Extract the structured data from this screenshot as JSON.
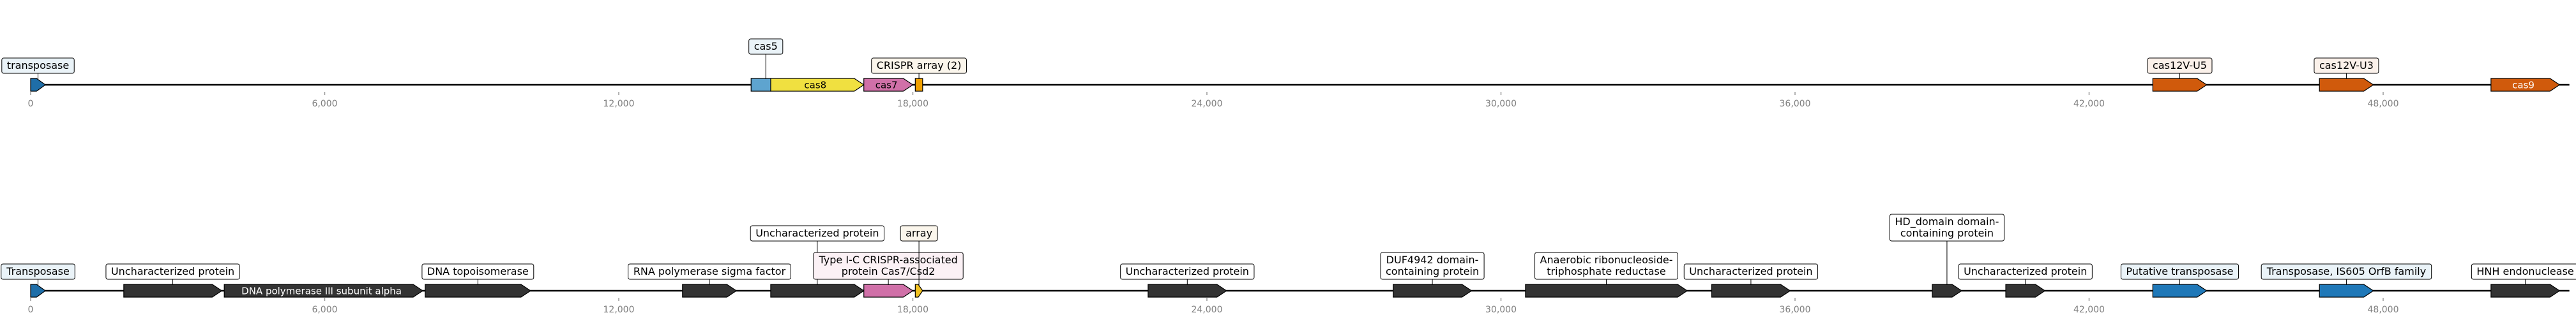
{
  "axis": {
    "tick_labels": [
      "0",
      "6,000",
      "12,000",
      "18,000",
      "24,000",
      "30,000",
      "36,000",
      "42,000",
      "48,000"
    ]
  },
  "tracks": [
    {
      "id": "track-1",
      "length": 51800,
      "genes": [
        {
          "start": 0,
          "end": 300,
          "strand": 1,
          "color": "#1f6ea8",
          "callout": [
            "transposase"
          ],
          "callout_bg": "#eaf3f8"
        },
        {
          "start": 14700,
          "end": 15300,
          "strand": 1,
          "color": "#5ea4cf",
          "callout": [
            "cas5"
          ],
          "callout_bg": "#eaf3f8",
          "tier": 1
        },
        {
          "start": 15100,
          "end": 17000,
          "strand": 1,
          "color": "#f0e040",
          "label": "cas8",
          "label_color": "#000000"
        },
        {
          "start": 17000,
          "end": 18000,
          "strand": 1,
          "color": "#d070a8",
          "label": "cas7",
          "label_color": "#000000"
        },
        {
          "start": 18050,
          "end": 18200,
          "strand": 0,
          "color": "#f0a000",
          "callout": [
            "CRISPR array (2)"
          ],
          "callout_bg": "#fbf6ec"
        },
        {
          "start": 43300,
          "end": 44400,
          "strand": 1,
          "color": "#d05a0c",
          "callout": [
            "cas12V-U5"
          ],
          "callout_bg": "#fbf1ea"
        },
        {
          "start": 46700,
          "end": 47800,
          "strand": 1,
          "color": "#d05a0c",
          "callout": [
            "cas12V-U3"
          ],
          "callout_bg": "#fbf1ea"
        },
        {
          "start": 50200,
          "end": 51600,
          "strand": 1,
          "color": "#d05a0c",
          "label": "cas9",
          "label_color": "#ffffff"
        }
      ]
    },
    {
      "id": "track-2",
      "length": 51800,
      "genes": [
        {
          "start": 0,
          "end": 300,
          "strand": 1,
          "color": "#1f6ea8",
          "callout": [
            "Transposase"
          ],
          "callout_bg": "#eaf3f8"
        },
        {
          "start": 1900,
          "end": 3900,
          "strand": 1,
          "color": "#333333",
          "callout": [
            "Uncharacterized protein"
          ],
          "callout_bg": "#ffffff"
        },
        {
          "start": 3950,
          "end": 8000,
          "strand": 1,
          "color": "#333333",
          "label": "DNA polymerase III subunit alpha",
          "label_color": "#ffffff"
        },
        {
          "start": 8050,
          "end": 10200,
          "strand": 1,
          "color": "#333333",
          "callout": [
            "DNA topoisomerase"
          ],
          "callout_bg": "#ffffff"
        },
        {
          "start": 13300,
          "end": 14400,
          "strand": 1,
          "color": "#333333",
          "callout": [
            "RNA polymerase sigma factor"
          ],
          "callout_bg": "#ffffff"
        },
        {
          "start": 15100,
          "end": 17000,
          "strand": 1,
          "color": "#333333",
          "callout": [
            "Uncharacterized protein"
          ],
          "callout_bg": "#ffffff",
          "tier": 2
        },
        {
          "start": 17000,
          "end": 18000,
          "strand": 1,
          "color": "#d070a8",
          "callout": [
            "Type I-C CRISPR-associated",
            "protein Cas7/Csd2"
          ],
          "callout_bg": "#fbf1f5"
        },
        {
          "start": 18050,
          "end": 18200,
          "strand": 1,
          "color": "#f0c020",
          "callout": [
            "array"
          ],
          "callout_bg": "#fbf6ec",
          "tier": 2
        },
        {
          "start": 22800,
          "end": 24400,
          "strand": 1,
          "color": "#333333",
          "callout": [
            "Uncharacterized protein"
          ],
          "callout_bg": "#ffffff"
        },
        {
          "start": 27800,
          "end": 29400,
          "strand": 1,
          "color": "#333333",
          "callout": [
            "DUF4942 domain-",
            "containing protein"
          ],
          "callout_bg": "#ffffff"
        },
        {
          "start": 30500,
          "end": 33800,
          "strand": 1,
          "color": "#333333",
          "callout": [
            "Anaerobic ribonucleoside-",
            "triphosphate reductase"
          ],
          "callout_bg": "#ffffff"
        },
        {
          "start": 34300,
          "end": 35900,
          "strand": 1,
          "color": "#333333",
          "callout": [
            "Uncharacterized protein"
          ],
          "callout_bg": "#ffffff"
        },
        {
          "start": 38800,
          "end": 39400,
          "strand": 1,
          "color": "#333333",
          "callout": [
            "HD_domain domain-",
            "containing protein"
          ],
          "callout_bg": "#ffffff",
          "tier": 2
        },
        {
          "start": 40300,
          "end": 41100,
          "strand": 1,
          "color": "#333333",
          "callout": [
            "Uncharacterized protein"
          ],
          "callout_bg": "#ffffff"
        },
        {
          "start": 43300,
          "end": 44400,
          "strand": 1,
          "color": "#1f78b8",
          "callout": [
            "Putative transposase"
          ],
          "callout_bg": "#eaf3f8"
        },
        {
          "start": 46700,
          "end": 47800,
          "strand": 1,
          "color": "#1f78b8",
          "callout": [
            "Transposase, IS605 OrfB family"
          ],
          "callout_bg": "#eaf3f8"
        },
        {
          "start": 50200,
          "end": 51600,
          "strand": 1,
          "color": "#333333",
          "callout": [
            "HNH endonuclease"
          ],
          "callout_bg": "#ffffff"
        }
      ]
    }
  ]
}
